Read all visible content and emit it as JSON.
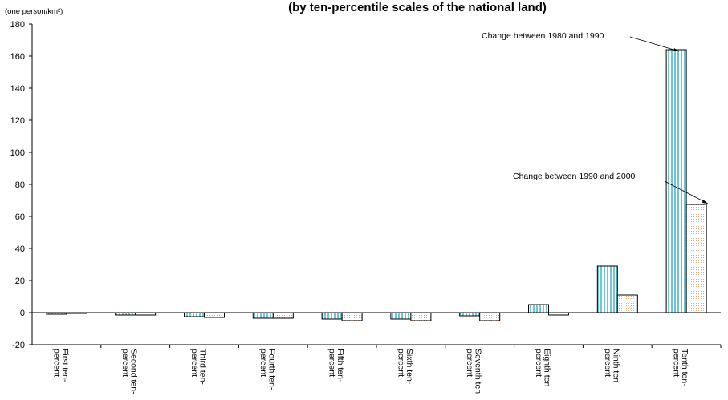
{
  "chart_data": {
    "type": "bar",
    "title": "(by ten-percentile scales of the national land)",
    "ylabel": "(one person/km²)",
    "ylim": [
      -20,
      180
    ],
    "yticks": [
      180,
      160,
      140,
      120,
      100,
      80,
      60,
      40,
      20,
      0,
      -20
    ],
    "grid": false,
    "categories": [
      [
        "First ten-",
        "percent"
      ],
      [
        "Second ten-",
        "percent"
      ],
      [
        "Third ten-",
        "percent"
      ],
      [
        "Fourth ten-",
        "percent"
      ],
      [
        "Fifth ten-",
        "percent"
      ],
      [
        "Sixth ten-",
        "percent"
      ],
      [
        "Seventh ten-",
        "percent"
      ],
      [
        "Eighth ten-",
        "percent"
      ],
      [
        "Ninth ten-",
        "percent"
      ],
      [
        "Tenth ten-",
        "percent"
      ]
    ],
    "series": [
      {
        "name": "Change between 1980 and 1990",
        "values": [
          -1.0,
          -1.5,
          -2.5,
          -3.5,
          -4.0,
          -4.0,
          -2.0,
          5.0,
          29.0,
          164.0
        ],
        "color": "#a8dce6"
      },
      {
        "name": "Change between 1990 and 2000",
        "values": [
          -0.5,
          -1.5,
          -3.0,
          -3.5,
          -5.0,
          -5.0,
          -5.0,
          -1.5,
          11.0,
          67.5
        ],
        "color": "#fbe3d0"
      }
    ]
  }
}
